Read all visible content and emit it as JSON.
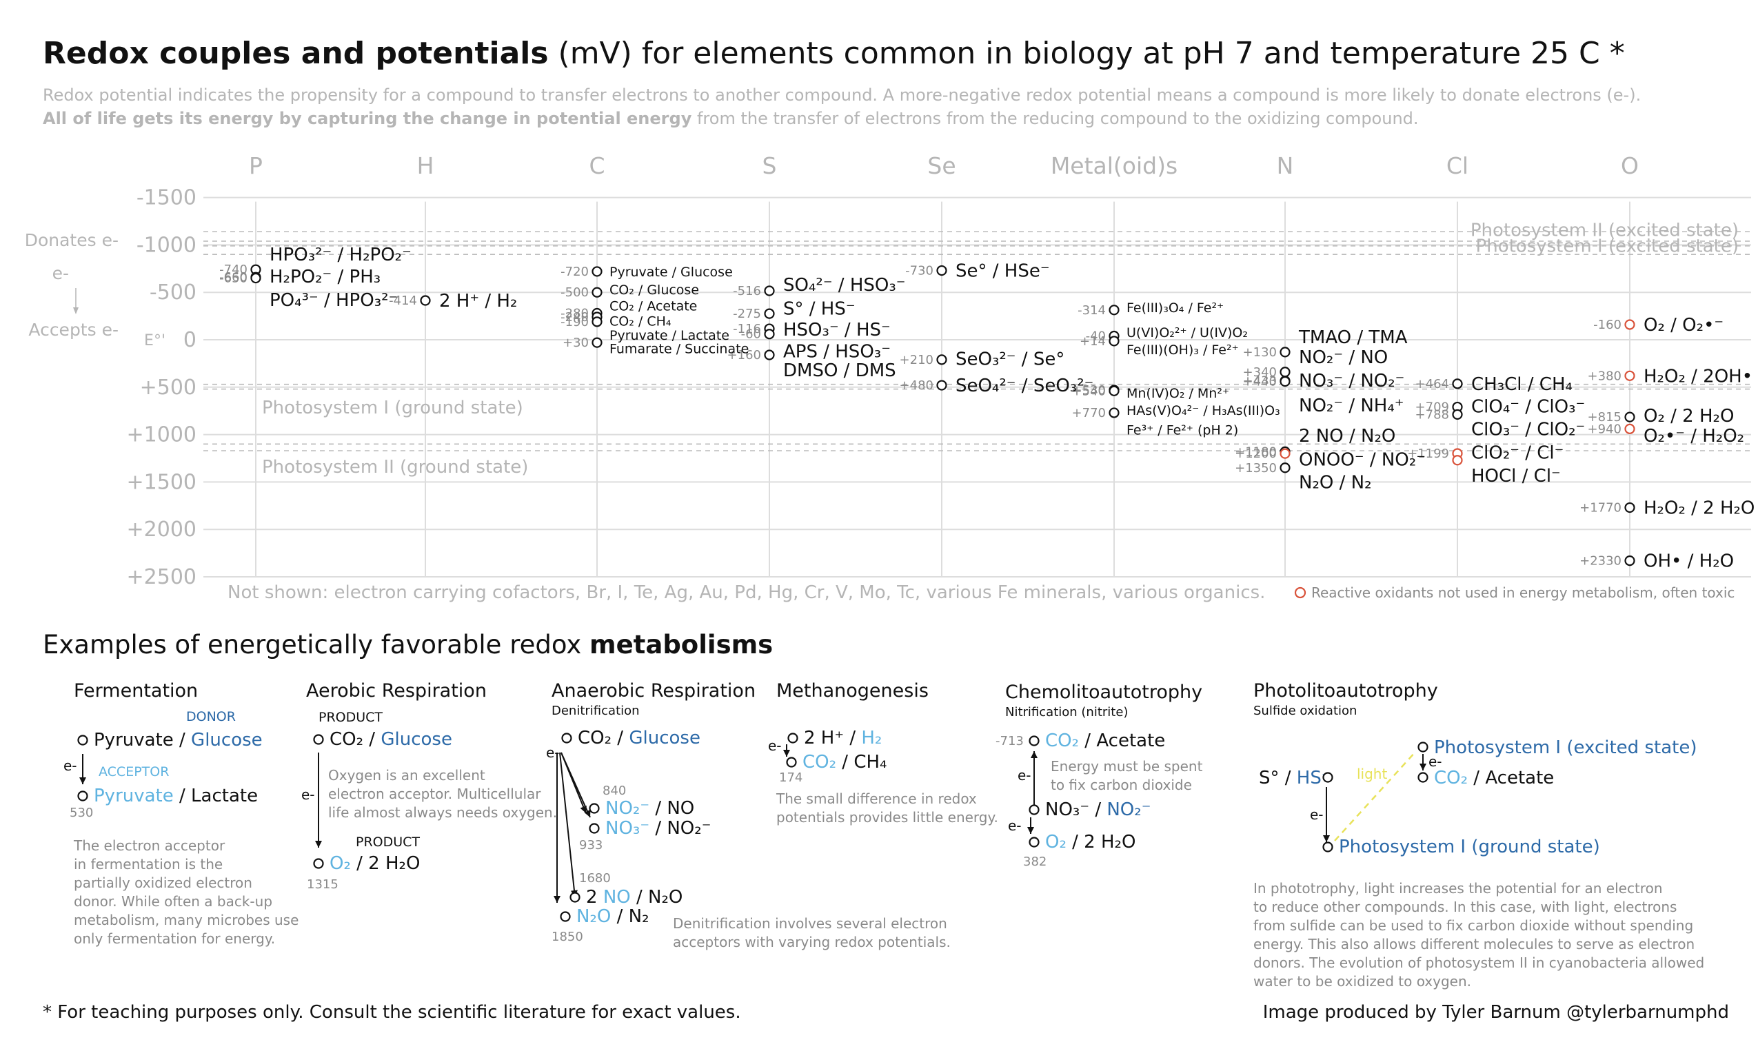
{
  "title": {
    "bold": "Redox couples and potentials",
    "rest": " (mV) for elements common in biology at pH 7 and temperature 25 C *"
  },
  "subtitle": {
    "line1": "Redox potential indicates the propensity for a compound to transfer electrons to another compound. A more-negative redox potential means a compound is more likely to donate electrons (e-).",
    "line2_bold": "All of life gets its energy by capturing the change in potential energy",
    "line2_rest": " from the transfer of electrons from the reducing compound to the oxidizing compound."
  },
  "colors": {
    "blue_dark": "#2d6aa8",
    "blue_light": "#5fb3e0",
    "red": "#d9523a",
    "grey": "#b5b5b5",
    "yellow": "#e8e25a"
  },
  "chart_data": {
    "type": "scatter",
    "columns": [
      "P",
      "H",
      "C",
      "S",
      "Se",
      "Metal(oid)s",
      "N",
      "Cl",
      "O"
    ],
    "y_ticks": [
      "-1500",
      "-1000",
      "-500",
      "0",
      "+500",
      "+1000",
      "+1500",
      "+2000",
      "+2500"
    ],
    "y_tick_values": [
      -1500,
      -1000,
      -500,
      0,
      500,
      1000,
      1500,
      2000,
      2500
    ],
    "ylim": [
      -1500,
      2500
    ],
    "y_axis_label": "E°'",
    "side_labels": {
      "donates": "Donates e-",
      "e": "e-",
      "accepts": "Accepts e-"
    },
    "reference_lines": [
      {
        "label": "Photosystem II (excited state)",
        "values": [
          -1140,
          -1040
        ]
      },
      {
        "label": "Photosystem I (excited state)",
        "values": [
          -990,
          -900
        ]
      },
      {
        "label": "Photosystem I (ground state)",
        "values": [
          470,
          520
        ]
      },
      {
        "label": "Photosystem II (ground state)",
        "values": [
          1100,
          1170
        ]
      }
    ],
    "not_shown": "Not shown: electron carrying cofactors, Br, I, Te, Ag, Au, Pd, Hg, Cr, V, Mo, Tc, various Fe minerals, various organics.",
    "legend_reactive": "Reactive oxidants not used in energy metabolism, often toxic",
    "points": [
      {
        "col": 0,
        "value": -740,
        "label": "-740",
        "red": false
      },
      {
        "col": 0,
        "value": -660,
        "label": "-660",
        "red": false
      },
      {
        "col": 0,
        "value": -650,
        "label": "-650",
        "red": false
      },
      {
        "col": 1,
        "value": -414,
        "label": "-414",
        "red": false
      },
      {
        "col": 2,
        "value": -720,
        "label": "-720",
        "red": false
      },
      {
        "col": 2,
        "value": -500,
        "label": "-500",
        "red": false
      },
      {
        "col": 2,
        "value": -280,
        "label": "-280",
        "red": false
      },
      {
        "col": 2,
        "value": -240,
        "label": "-240",
        "red": false
      },
      {
        "col": 2,
        "value": -190,
        "label": "-190",
        "red": false
      },
      {
        "col": 2,
        "value": 30,
        "label": "+30",
        "red": false
      },
      {
        "col": 3,
        "value": -516,
        "label": "-516",
        "red": false
      },
      {
        "col": 3,
        "value": -275,
        "label": "-275",
        "red": false
      },
      {
        "col": 3,
        "value": -116,
        "label": "-116",
        "red": false
      },
      {
        "col": 3,
        "value": -60,
        "label": "-60",
        "red": false
      },
      {
        "col": 3,
        "value": 160,
        "label": "+160",
        "red": false
      },
      {
        "col": 4,
        "value": -730,
        "label": "-730",
        "red": false
      },
      {
        "col": 4,
        "value": 210,
        "label": "+210",
        "red": false
      },
      {
        "col": 4,
        "value": 480,
        "label": "+480",
        "red": false
      },
      {
        "col": 5,
        "value": -314,
        "label": "-314",
        "red": false
      },
      {
        "col": 5,
        "value": -40,
        "label": "-40",
        "red": false
      },
      {
        "col": 5,
        "value": 14,
        "label": "+14",
        "red": false
      },
      {
        "col": 5,
        "value": 530,
        "label": "+530",
        "red": false
      },
      {
        "col": 5,
        "value": 540,
        "label": "+540",
        "red": false
      },
      {
        "col": 5,
        "value": 770,
        "label": "+770",
        "red": false
      },
      {
        "col": 6,
        "value": 130,
        "label": "+130",
        "red": false
      },
      {
        "col": 6,
        "value": 340,
        "label": "+340",
        "red": false
      },
      {
        "col": 6,
        "value": 433,
        "label": "+433",
        "red": false
      },
      {
        "col": 6,
        "value": 440,
        "label": "+440",
        "red": false
      },
      {
        "col": 6,
        "value": 1180,
        "label": "+1180",
        "red": false
      },
      {
        "col": 6,
        "value": 1200,
        "label": "+1200",
        "red": true
      },
      {
        "col": 6,
        "value": 1350,
        "label": "+1350",
        "red": false
      },
      {
        "col": 7,
        "value": 464,
        "label": "+464",
        "red": false
      },
      {
        "col": 7,
        "value": 709,
        "label": "+709",
        "red": false
      },
      {
        "col": 7,
        "value": 788,
        "label": "+788",
        "red": false
      },
      {
        "col": 7,
        "value": 1199,
        "label": "+1199",
        "red": true
      },
      {
        "col": 7,
        "value": 1270,
        "label": "",
        "red": true
      },
      {
        "col": 8,
        "value": -160,
        "label": "-160",
        "red": true
      },
      {
        "col": 8,
        "value": 380,
        "label": "+380",
        "red": true
      },
      {
        "col": 8,
        "value": 815,
        "label": "+815",
        "red": false
      },
      {
        "col": 8,
        "value": 940,
        "label": "+940",
        "red": true
      },
      {
        "col": 8,
        "value": 1770,
        "label": "+1770",
        "red": false
      },
      {
        "col": 8,
        "value": 2330,
        "label": "+2330",
        "red": false
      }
    ],
    "couples": [
      {
        "col": 0,
        "value": -900,
        "size": "big",
        "text": "HPO₃²⁻ / H₂PO₂⁻"
      },
      {
        "col": 0,
        "value": -670,
        "size": "big",
        "text": "H₂PO₂⁻ / PH₃"
      },
      {
        "col": 0,
        "value": -420,
        "size": "big",
        "text": "PO₄³⁻ / HPO₃²⁻"
      },
      {
        "col": 1,
        "value": -414,
        "size": "big",
        "text": "2 H⁺ / H₂"
      },
      {
        "col": 2,
        "value": -720,
        "size": "small",
        "text": "Pyruvate / Glucose"
      },
      {
        "col": 2,
        "value": -530,
        "size": "small",
        "text": "CO₂ / Glucose"
      },
      {
        "col": 2,
        "value": -360,
        "size": "small",
        "text": "CO₂ / Acetate"
      },
      {
        "col": 2,
        "value": -200,
        "size": "small",
        "text": "CO₂ / CH₄"
      },
      {
        "col": 2,
        "value": -50,
        "size": "small",
        "text": "Pyruvate / Lactate"
      },
      {
        "col": 2,
        "value": 90,
        "size": "small",
        "text": "Fumarate / Succinate"
      },
      {
        "col": 3,
        "value": -580,
        "size": "big",
        "text": "SO₄²⁻ / HSO₃⁻"
      },
      {
        "col": 3,
        "value": -330,
        "size": "big",
        "text": "S° / HS⁻"
      },
      {
        "col": 3,
        "value": -110,
        "size": "big",
        "text": "HSO₃⁻ / HS⁻"
      },
      {
        "col": 3,
        "value": 120,
        "size": "big",
        "text": "APS / HSO₃⁻"
      },
      {
        "col": 3,
        "value": 320,
        "size": "big",
        "text": "DMSO / DMS"
      },
      {
        "col": 4,
        "value": -730,
        "size": "big",
        "text": "Se° / HSe⁻"
      },
      {
        "col": 4,
        "value": 200,
        "size": "big",
        "text": "SeO₃²⁻ / Se°"
      },
      {
        "col": 4,
        "value": 480,
        "size": "big",
        "text": "SeO₄²⁻ / SeO₃²⁻"
      },
      {
        "col": 5,
        "value": -340,
        "size": "small",
        "text": "Fe(III)₃O₄ / Fe²⁺"
      },
      {
        "col": 5,
        "value": -80,
        "size": "small",
        "text": "U(VI)O₂²⁺ / U(IV)O₂"
      },
      {
        "col": 5,
        "value": 100,
        "size": "small",
        "text": "Fe(III)(OH)₃ / Fe²⁺"
      },
      {
        "col": 5,
        "value": 560,
        "size": "small",
        "text": "Mn(IV)O₂ / Mn²⁺"
      },
      {
        "col": 5,
        "value": 740,
        "size": "small",
        "text": "HAs(V)O₄²⁻ / H₃As(III)O₃"
      },
      {
        "col": 5,
        "value": 950,
        "size": "small",
        "text": "Fe³⁺ / Fe²⁺ (pH 2)"
      },
      {
        "col": 6,
        "value": -30,
        "size": "big",
        "text": "TMAO / TMA"
      },
      {
        "col": 6,
        "value": 180,
        "size": "big",
        "text": "NO₂⁻ / NO"
      },
      {
        "col": 6,
        "value": 430,
        "size": "big",
        "text": "NO₃⁻ / NO₂⁻"
      },
      {
        "col": 6,
        "value": 690,
        "size": "big",
        "text": "NO₂⁻ / NH₄⁺"
      },
      {
        "col": 6,
        "value": 1010,
        "size": "big",
        "text": "2 NO / N₂O"
      },
      {
        "col": 6,
        "value": 1260,
        "size": "big",
        "text": "ONOO⁻ / NO₂⁻"
      },
      {
        "col": 6,
        "value": 1500,
        "size": "big",
        "text": "N₂O / N₂"
      },
      {
        "col": 7,
        "value": 464,
        "size": "big",
        "text": "CH₃Cl / CH₄"
      },
      {
        "col": 7,
        "value": 700,
        "size": "big",
        "text": "ClO₄⁻ / ClO₃⁻"
      },
      {
        "col": 7,
        "value": 940,
        "size": "big",
        "text": "ClO₃⁻ / ClO₂⁻"
      },
      {
        "col": 7,
        "value": 1190,
        "size": "big",
        "text": "ClO₂⁻ / Cl⁻"
      },
      {
        "col": 7,
        "value": 1430,
        "size": "big",
        "text": "HOCl / Cl⁻"
      },
      {
        "col": 8,
        "value": -160,
        "size": "big",
        "text": "O₂ / O₂•⁻"
      },
      {
        "col": 8,
        "value": 380,
        "size": "big",
        "text": "H₂O₂ / 2OH•"
      },
      {
        "col": 8,
        "value": 800,
        "size": "big",
        "text": "O₂ / 2 H₂O"
      },
      {
        "col": 8,
        "value": 1010,
        "size": "big",
        "text": "O₂•⁻ / H₂O₂"
      },
      {
        "col": 8,
        "value": 1770,
        "size": "big",
        "text": "H₂O₂ / 2 H₂O"
      },
      {
        "col": 8,
        "value": 2330,
        "size": "big",
        "text": "OH• / H₂O"
      }
    ]
  },
  "examples": {
    "title_plain": "Examples of energetically favorable redox ",
    "title_bold": "metabolisms",
    "fermentation": {
      "title": "Fermentation",
      "donor_tag": "DONOR",
      "acceptor_tag": "ACCEPTOR",
      "donor_a": "Pyruvate / ",
      "donor_b": "Glucose",
      "acceptor_a": "Pyruvate",
      "acceptor_b": " / Lactate",
      "e": "e-",
      "value": "530",
      "note": [
        "The electron acceptor",
        "in fermentation is the",
        "partially oxidized electron",
        "donor. While often a back-up",
        "metabolism, many microbes use",
        "only fermentation for energy."
      ]
    },
    "aerobic": {
      "title": "Aerobic Respiration",
      "product1": "PRODUCT",
      "product2": "PRODUCT",
      "top_a": "CO₂ / ",
      "top_b": "Glucose",
      "bottom_a": "O₂",
      "bottom_b": " / 2 H₂O",
      "e": "e-",
      "value": "1315",
      "note": [
        "Oxygen is an excellent",
        "electron acceptor. Multicellular",
        "life almost always needs oxygen."
      ]
    },
    "anaerobic": {
      "title": "Anaerobic Respiration",
      "subtitle": "Denitrification",
      "top_a": "CO₂ / ",
      "top_b": "Glucose",
      "e": "e-",
      "r1_a": "NO₂⁻",
      "r1_b": " / NO",
      "r2_a": "NO₃⁻",
      "r2_b": " / NO₂⁻",
      "r3_a": "2 ",
      "r3_b": "NO",
      "r3_c": " / N₂O",
      "r4_a": "N₂O",
      "r4_b": " / N₂",
      "v1": "840",
      "v2": "933",
      "v3": "1680",
      "v4": "1850",
      "note": [
        "Denitrification involves several electron",
        "acceptors with varying redox potentials."
      ]
    },
    "methanogenesis": {
      "title": "Methanogenesis",
      "top_a": "2 H⁺ / ",
      "top_b": "H₂",
      "bottom_a": "CO₂",
      "bottom_b": " / CH₄",
      "e": "e-",
      "value": "174",
      "note": [
        "The small difference in redox",
        "potentials provides little energy."
      ]
    },
    "chemo": {
      "title": "Chemolitoautotrophy",
      "subtitle": "Nitrification (nitrite)",
      "top_a": "CO₂",
      "top_b": " / Acetate",
      "mid_a": "NO₃⁻ / ",
      "mid_b": "NO₂⁻",
      "bottom_a": "O₂",
      "bottom_b": " / 2 H₂O",
      "e1": "e-",
      "e2": "e-",
      "v_top": "-713",
      "v_bottom": "382",
      "note": [
        "Energy must be spent",
        "to fix carbon dioxide"
      ]
    },
    "photo": {
      "title": "Photolitoautotrophy",
      "subtitle": "Sulfide oxidation",
      "donor_a": "S° / ",
      "donor_b": "HS⁻",
      "light": "light",
      "ps_excited": "Photosystem I (excited state)",
      "ps_ground": "Photosystem I (ground state)",
      "acc_a": "CO₂",
      "acc_b": " / Acetate",
      "e1": "e-",
      "e2": "e-",
      "note": [
        "In phototrophy, light increases the potential for an electron",
        "to reduce other compounds. In this case, with light, electrons",
        "from sulfide can be used to fix carbon dioxide without spending",
        "energy. This also allows different molecules to serve as electron",
        "donors. The evolution of photosystem II in cyanobacteria allowed",
        "water to be oxidized to oxygen."
      ]
    }
  },
  "footer": {
    "left": "* For teaching purposes only. Consult the scientific literature for exact values.",
    "right": "Image produced by Tyler Barnum @tylerbarnumphd"
  }
}
